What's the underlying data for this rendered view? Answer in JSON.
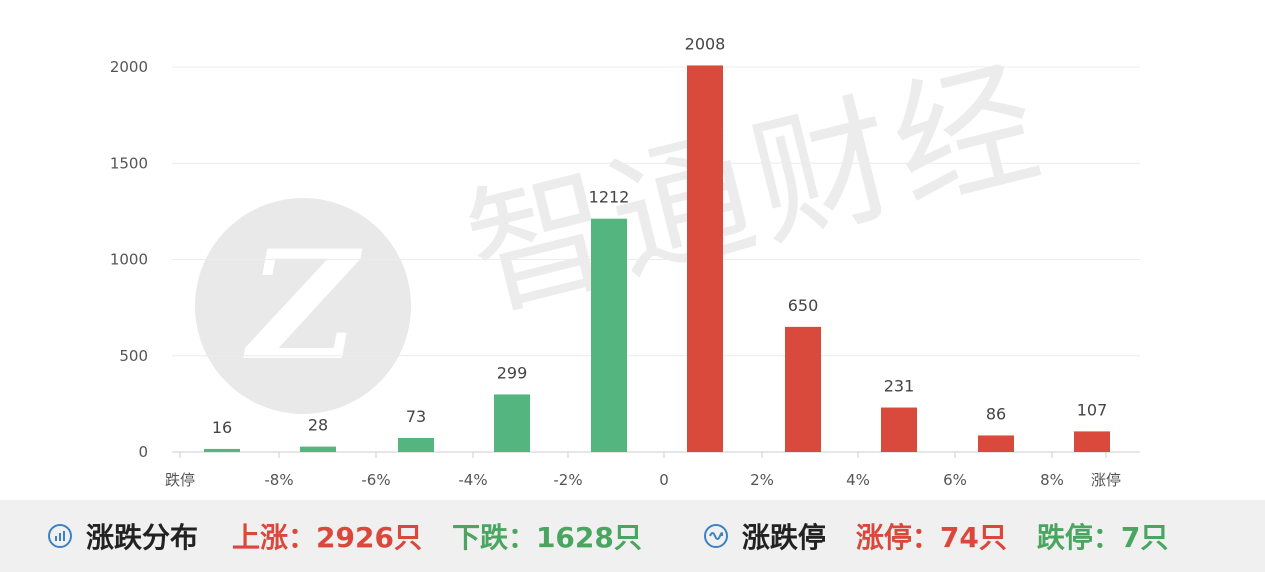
{
  "watermark": {
    "logo_letter": "Z",
    "text": "智通财经"
  },
  "chart_data": {
    "type": "bar",
    "categories": [
      "跌停",
      "-8%",
      "-6%",
      "-4%",
      "-2%",
      "0",
      "2%",
      "4%",
      "6%",
      "8%",
      "涨停"
    ],
    "bars": [
      {
        "value": 16,
        "direction": "down"
      },
      {
        "value": 28,
        "direction": "down"
      },
      {
        "value": 73,
        "direction": "down"
      },
      {
        "value": 299,
        "direction": "down"
      },
      {
        "value": 1212,
        "direction": "down"
      },
      {
        "value": 2008,
        "direction": "up"
      },
      {
        "value": 650,
        "direction": "up"
      },
      {
        "value": 231,
        "direction": "up"
      },
      {
        "value": 86,
        "direction": "up"
      },
      {
        "value": 107,
        "direction": "up"
      }
    ],
    "y_ticks": [
      0,
      500,
      1000,
      1500,
      2000
    ],
    "ylim": [
      0,
      2000
    ],
    "colors": {
      "down": "#55b57f",
      "up": "#d9493c"
    },
    "grid": true
  },
  "footer": {
    "distribution_icon": "bar-chart-icon",
    "distribution_title": "涨跌分布",
    "up_text": "上涨：2926只",
    "down_text": "下跌：1628只",
    "limit_icon": "limit-wave-icon",
    "limit_title": "涨跌停",
    "limit_up_text": "涨停：74只",
    "limit_down_text": "跌停：7只",
    "colors": {
      "red": "#d9483b",
      "green": "#4aa561",
      "icon": "#3b82c4"
    }
  }
}
